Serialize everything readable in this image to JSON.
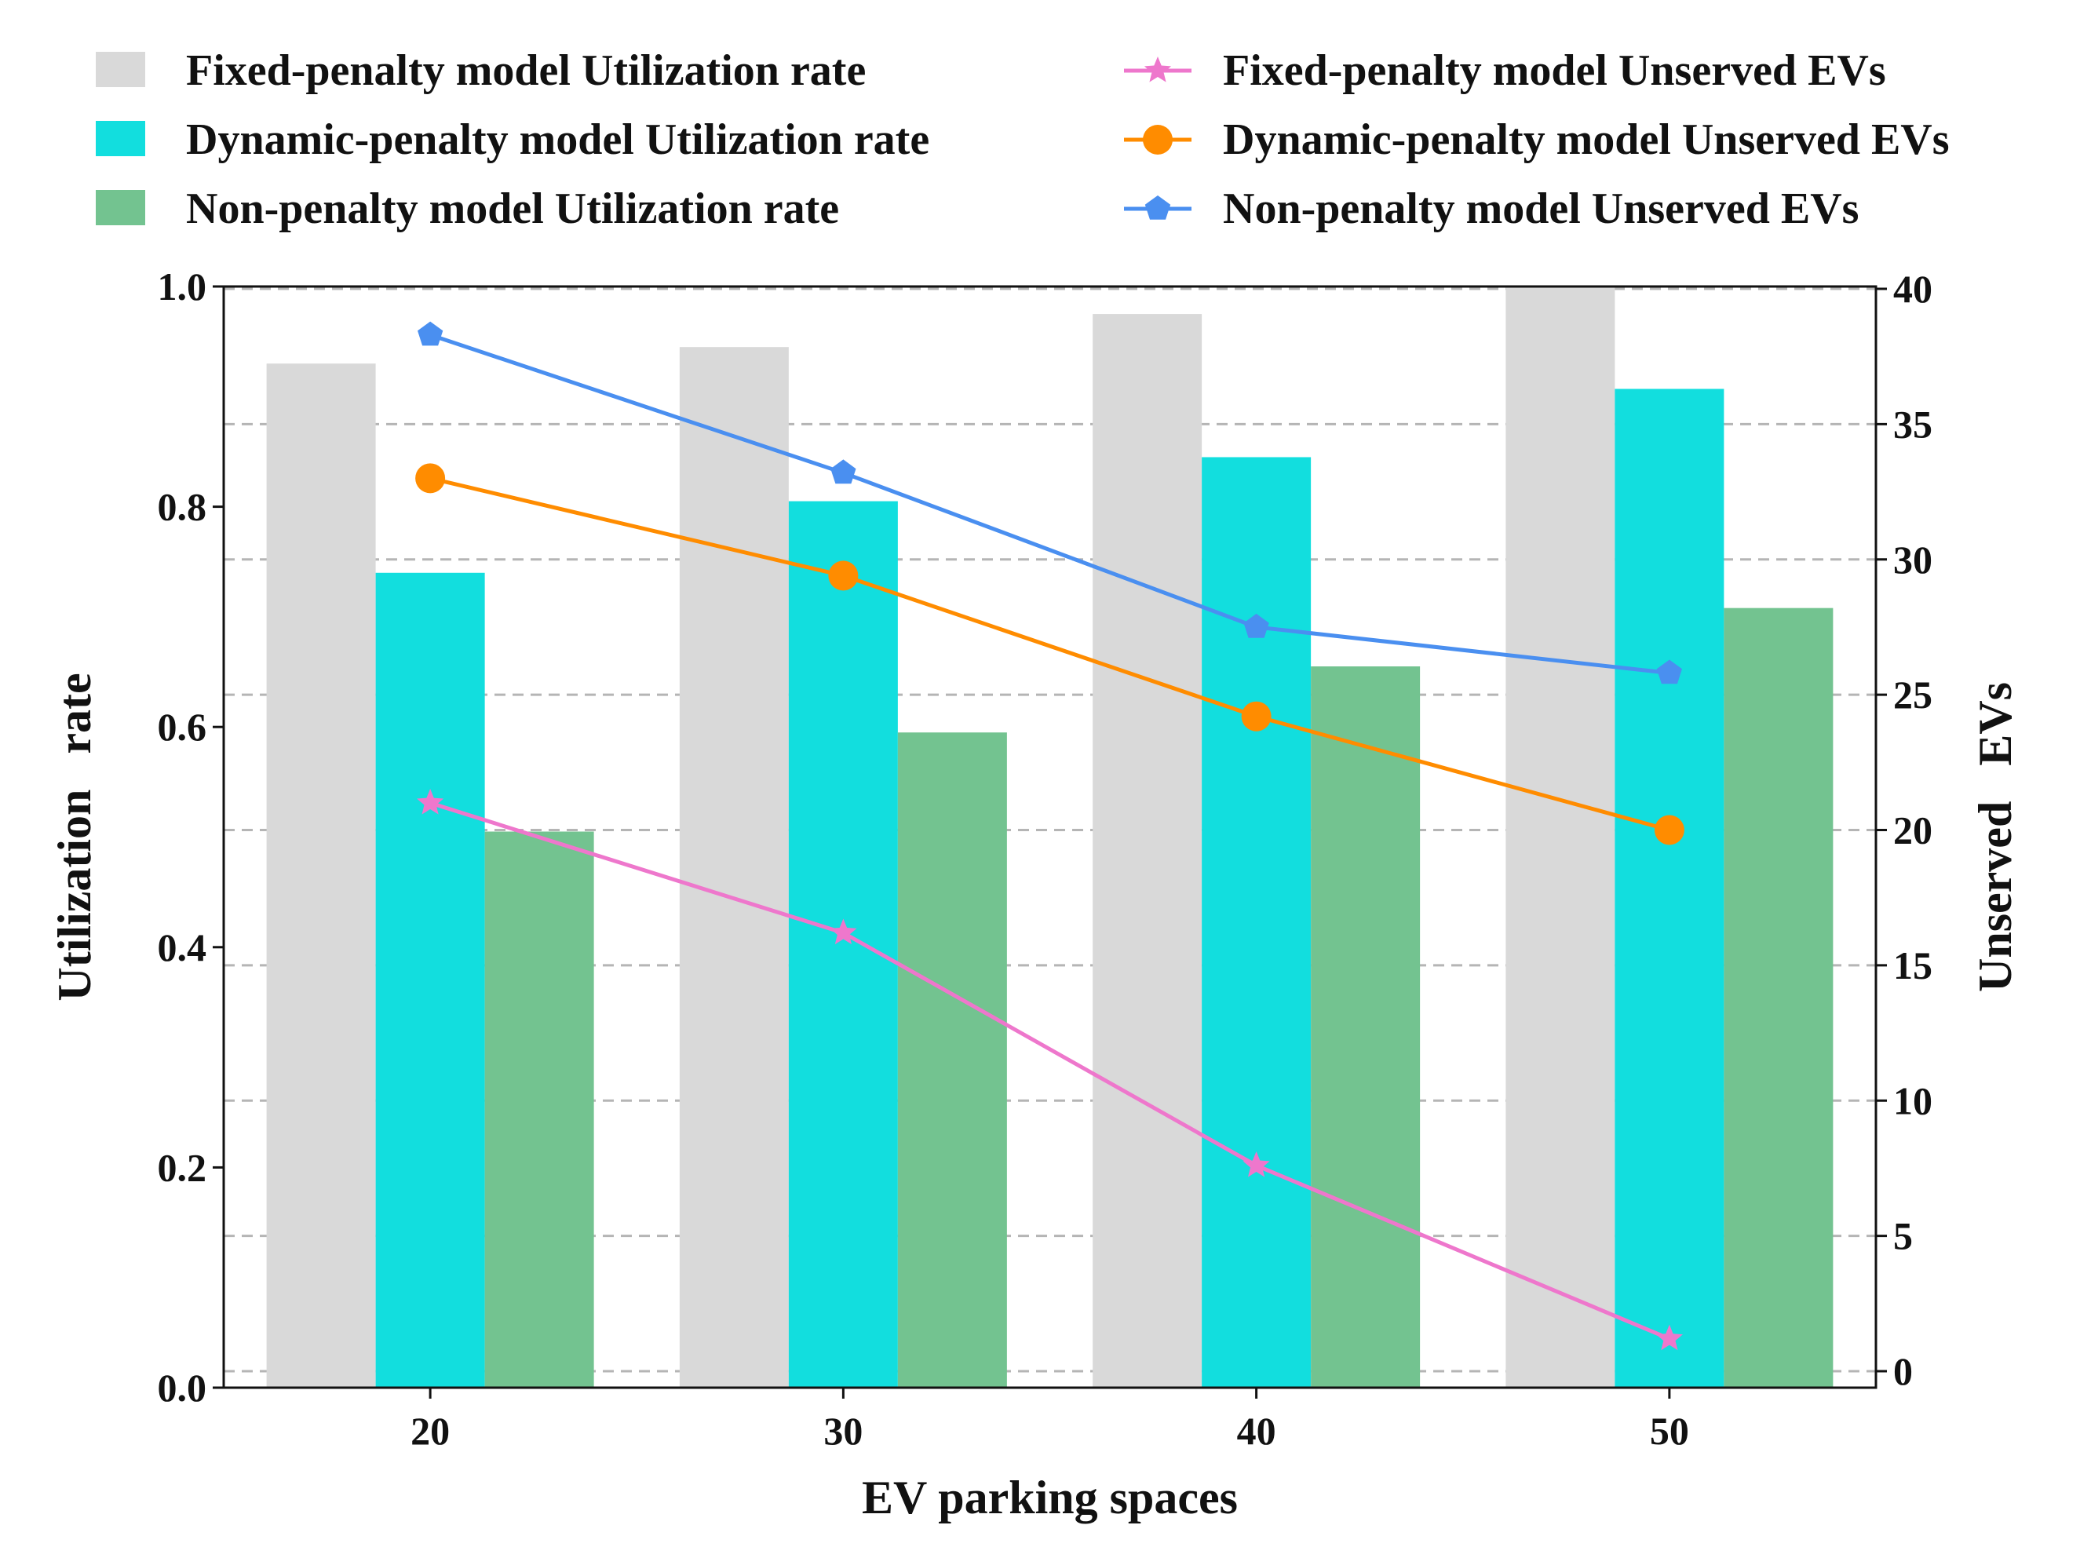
{
  "chart_data": {
    "type": "bar",
    "xlabel": "EV parking spaces",
    "ylabel": "Utilization   rate",
    "y2label": "Unserved   EVs",
    "categories": [
      "20",
      "30",
      "40",
      "50"
    ],
    "ylim": [
      0,
      1.0
    ],
    "y2lim": [
      0,
      40
    ],
    "yticks": [
      "0.0",
      "0.2",
      "0.4",
      "0.6",
      "0.8",
      "1.0"
    ],
    "y2ticks": [
      "0",
      "5",
      "10",
      "15",
      "20",
      "25",
      "30",
      "35",
      "40"
    ],
    "grid": "dashed horizontal (right axis)",
    "legend_position": "top",
    "bar_series": [
      {
        "name": "Fixed-penalty model Utilization rate",
        "color": "#d9d9d9",
        "values": [
          0.93,
          0.945,
          0.975,
          1.0
        ]
      },
      {
        "name": "Dynamic-penalty model Utilization rate",
        "color": "#12dede",
        "values": [
          0.74,
          0.805,
          0.845,
          0.907
        ]
      },
      {
        "name": "Non-penalty model Utilization rate",
        "color": "#73c390",
        "values": [
          0.505,
          0.595,
          0.655,
          0.708
        ]
      }
    ],
    "line_series": [
      {
        "name": "Fixed-penalty model Unserved EVs",
        "color": "#ee77cc",
        "marker": "star",
        "values": [
          21,
          16.2,
          7.6,
          1.2
        ]
      },
      {
        "name": "Dynamic-penalty model Unserved EVs",
        "color": "#ff8c00",
        "marker": "circle",
        "values": [
          33,
          29.4,
          24.2,
          20
        ]
      },
      {
        "name": "Non-penalty model Unserved EVs",
        "color": "#4a8ff0",
        "marker": "pentagon",
        "values": [
          38.3,
          33.2,
          27.5,
          25.8
        ]
      }
    ]
  }
}
